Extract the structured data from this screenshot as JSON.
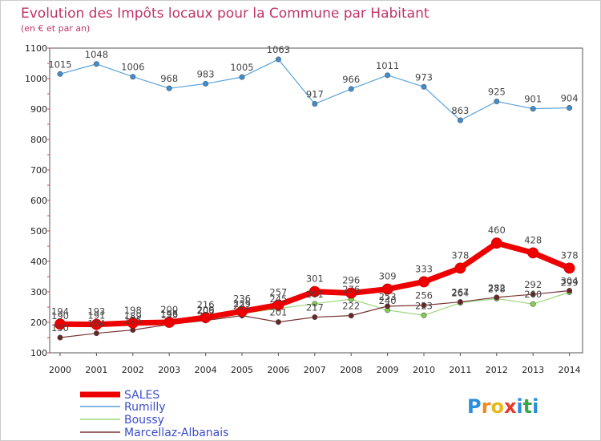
{
  "title": "Evolution des Impôts locaux pour la Commune par Habitant",
  "subtitle": "(en € et par an)",
  "logo": {
    "text": "Proxiti",
    "letters": [
      "P",
      "r",
      "o",
      "x",
      "i",
      "t",
      "i"
    ],
    "colors": [
      "#2a8ed8",
      "#f08a1c",
      "#e8b81c",
      "#e43a2a",
      "#2a8ed8",
      "#3aa84a",
      "#2a8ed8"
    ]
  },
  "colors": {
    "background": "#ffffff",
    "plot_frame": "#555555",
    "title": "#c03468",
    "legend_text": "#3a4dc7"
  },
  "chart_data": {
    "type": "line",
    "title": "Evolution des Impôts locaux pour la Commune par Habitant",
    "subtitle": "(en € et par an)",
    "xlabel": "",
    "ylabel": "",
    "x": [
      "2000",
      "2001",
      "2002",
      "2003",
      "2004",
      "2005",
      "2006",
      "2007",
      "2008",
      "2009",
      "2010",
      "2011",
      "2012",
      "2013",
      "2014"
    ],
    "ylim": [
      100,
      1100
    ],
    "yticks": [
      100,
      200,
      300,
      400,
      500,
      600,
      700,
      800,
      900,
      1000,
      1100
    ],
    "grid": false,
    "legend_position": "bottom-left",
    "series": [
      {
        "name": "SALES",
        "color": "#ee0000",
        "width": "thick",
        "values": [
          194,
          193,
          198,
          200,
          216,
          236,
          257,
          301,
          296,
          309,
          333,
          378,
          460,
          428,
          378
        ],
        "labels": [
          "194",
          "193",
          "198",
          "200",
          "216",
          "236",
          "257",
          "301",
          "296",
          "309",
          "333",
          "378",
          "460",
          "428",
          "378"
        ]
      },
      {
        "name": "Rumilly",
        "color": "#5ba3d9",
        "marker": "#3d8fd0",
        "values": [
          1015,
          1048,
          1006,
          968,
          983,
          1005,
          1063,
          917,
          966,
          1011,
          973,
          863,
          925,
          901,
          904
        ],
        "labels": [
          "1015",
          "1048",
          "1006",
          "968",
          "983",
          "1005",
          "1063",
          "917",
          "966",
          "1011",
          "973",
          "863",
          "925",
          "901",
          "904"
        ]
      },
      {
        "name": "Boussy",
        "color": "#9fd67f",
        "marker": "#7fd04a",
        "values": [
          190,
          191,
          189,
          196,
          209,
          229,
          245,
          261,
          276,
          240,
          223,
          264,
          278,
          260,
          299
        ],
        "labels": [
          "190",
          "191",
          "189",
          "196",
          "209",
          "229",
          "245",
          "261",
          "276",
          "240",
          "223",
          "264",
          "278",
          "260",
          "299"
        ]
      },
      {
        "name": "Marcellaz-Albanais",
        "color": "#7a3535",
        "marker": "#6a2424",
        "values": [
          150,
          164,
          175,
          193,
          206,
          222,
          201,
          217,
          222,
          253,
          256,
          267,
          282,
          292,
          304
        ],
        "labels": [
          "150",
          "164",
          "175",
          "193",
          "206",
          "222",
          "201",
          "217",
          "222",
          "253",
          "256",
          "267",
          "282",
          "292",
          "304"
        ]
      }
    ]
  }
}
